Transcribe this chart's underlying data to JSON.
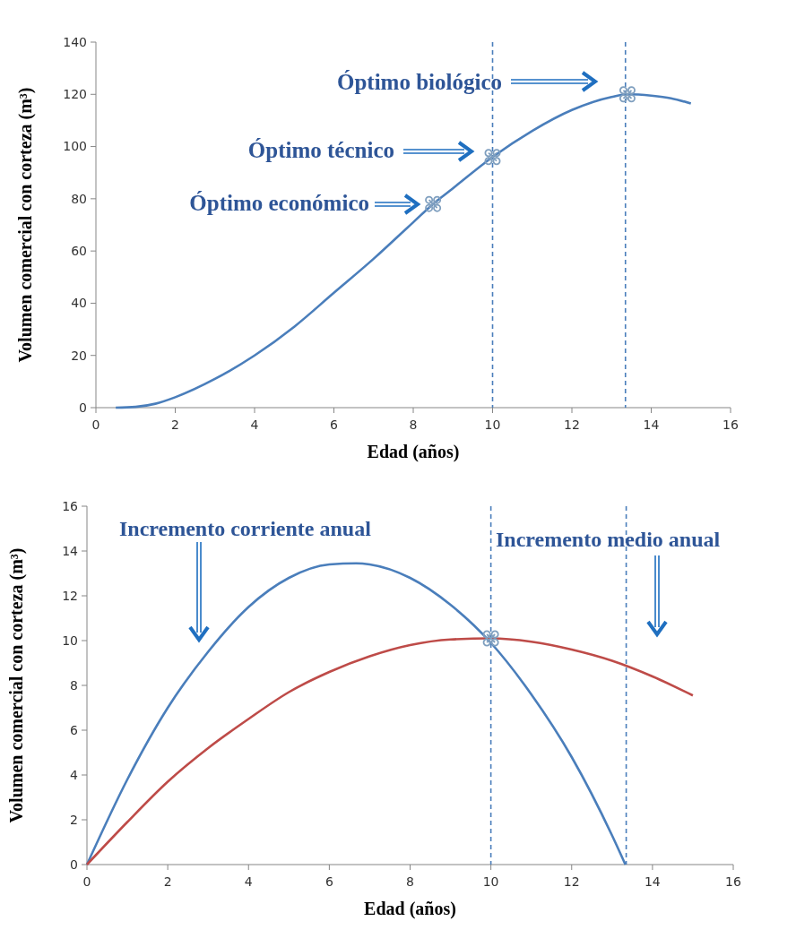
{
  "chart_data": [
    {
      "type": "line",
      "xlabel": "Edad (años)",
      "ylabel": "Volumen comercial con corteza (m³)",
      "xlim": [
        0,
        16
      ],
      "xticks": [
        0,
        2,
        4,
        6,
        8,
        10,
        12,
        14,
        16
      ],
      "ylim": [
        0,
        140
      ],
      "yticks": [
        0,
        20,
        40,
        60,
        80,
        100,
        120,
        140
      ],
      "grid": false,
      "series": [
        {
          "color": "#4a7ebb",
          "marker": "none",
          "x": [
            0.5,
            1,
            1.5,
            2,
            3,
            4,
            5,
            6,
            7,
            8,
            8.5,
            9,
            10,
            11,
            12,
            13,
            13.4,
            14,
            14.5,
            15
          ],
          "values": [
            0,
            0.3,
            1.5,
            4,
            11,
            20,
            31,
            44,
            57,
            71,
            78,
            84,
            96,
            106,
            114,
            119,
            120,
            119.5,
            118.5,
            116.5
          ]
        },
        {
          "type": "scatter",
          "color": "#7f9fbf",
          "marker": "cross",
          "x": [
            8.5,
            10,
            13.4
          ],
          "values": [
            78,
            96,
            120
          ]
        }
      ],
      "ref_lines": [
        {
          "axis": "x",
          "value": 10,
          "color": "#4a7ebb",
          "line_style": "dashed"
        },
        {
          "axis": "x",
          "value": 13.35,
          "color": "#4a7ebb",
          "line_style": "dashed"
        }
      ],
      "annotations": [
        "Óptimo económico",
        "Óptimo técnico",
        "Óptimo biológico"
      ]
    },
    {
      "type": "line",
      "xlabel": "Edad (años)",
      "ylabel": "Volumen comercial con corteza (m³)",
      "xlim": [
        0,
        16
      ],
      "xticks": [
        0,
        2,
        4,
        6,
        8,
        10,
        12,
        14,
        16
      ],
      "ylim": [
        0,
        16
      ],
      "yticks": [
        0,
        2,
        4,
        6,
        8,
        10,
        12,
        14,
        16
      ],
      "grid": false,
      "series": [
        {
          "color": "#4a7ebb",
          "marker": "none",
          "x": [
            0,
            1,
            2,
            3,
            4,
            5,
            6,
            6.67,
            7,
            8,
            9,
            10,
            11,
            12,
            13,
            13.33
          ],
          "values": [
            0,
            3.8,
            7,
            9.5,
            11.5,
            12.8,
            13.4,
            13.45,
            13.4,
            12.8,
            11.6,
            9.9,
            7.6,
            4.8,
            1.3,
            0
          ]
        },
        {
          "color": "#be4b48",
          "marker": "none",
          "x": [
            0,
            1,
            2,
            3,
            4,
            5,
            6,
            7,
            8,
            9,
            10,
            11,
            12,
            13,
            14,
            15
          ],
          "values": [
            0,
            1.9,
            3.7,
            5.2,
            6.5,
            7.7,
            8.6,
            9.3,
            9.8,
            10.05,
            10.1,
            9.95,
            9.6,
            9.1,
            8.4,
            7.55
          ]
        },
        {
          "type": "scatter",
          "color": "#7f9fbf",
          "marker": "cross",
          "x": [
            10
          ],
          "values": [
            10.1
          ]
        }
      ],
      "ref_lines": [
        {
          "axis": "x",
          "value": 10,
          "color": "#4a7ebb",
          "line_style": "dashed"
        },
        {
          "axis": "x",
          "value": 13.35,
          "color": "#4a7ebb",
          "line_style": "dashed"
        }
      ],
      "annotations": [
        "Incremento corriente anual",
        "Incremento medio anual"
      ]
    }
  ]
}
